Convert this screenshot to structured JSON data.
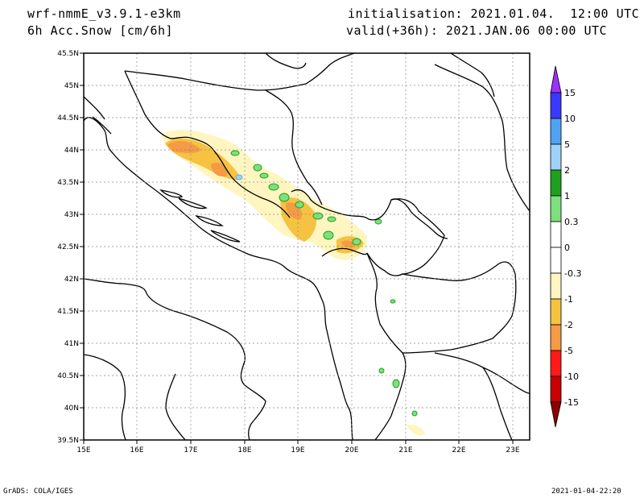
{
  "header": {
    "model": "wrf-nmmE_v3.9.1-e3km",
    "field": "6h Acc.Snow [cm/6h]",
    "init": "initialisation: 2021.01.04.  12:00 UTC",
    "valid": "valid(+36h): 2021.JAN.06 00:00 UTC"
  },
  "footer": {
    "software": "GrADS: COLA/IGES",
    "timestamp": "2021-01-04-22:20"
  },
  "map": {
    "lon_ticks": [
      "15E",
      "16E",
      "17E",
      "18E",
      "19E",
      "20E",
      "21E",
      "22E",
      "23E"
    ],
    "lat_ticks": [
      "39.5N",
      "40N",
      "40.5N",
      "41N",
      "41.5N",
      "42N",
      "42.5N",
      "43N",
      "43.5N",
      "44N",
      "44.5N",
      "45N",
      "45.5N"
    ],
    "lon_range": [
      15,
      23.3
    ],
    "lat_range": [
      39.5,
      45.5
    ],
    "grid": true
  },
  "colorbar": {
    "labels": [
      "15",
      "10",
      "5",
      "2",
      "1",
      "0.3",
      "0",
      "-0.3",
      "-1",
      "-2",
      "-5",
      "-10",
      "-15"
    ],
    "colors_top_to_bottom": [
      "#9b30ff",
      "#3a3aff",
      "#4fa3f2",
      "#9fd2f8",
      "#1fa01f",
      "#7de07d",
      "#ffffff",
      "#ffffff",
      "#fff5c0",
      "#f5c242",
      "#f59a45",
      "#ff1a1a",
      "#c80000",
      "#8b0000"
    ]
  },
  "snow_colors": {
    "light": "#fff5c0",
    "moderate": "#f5c242",
    "heavy": "#f59a45",
    "green": "#7de07d",
    "darkgreen": "#1fa01f"
  }
}
